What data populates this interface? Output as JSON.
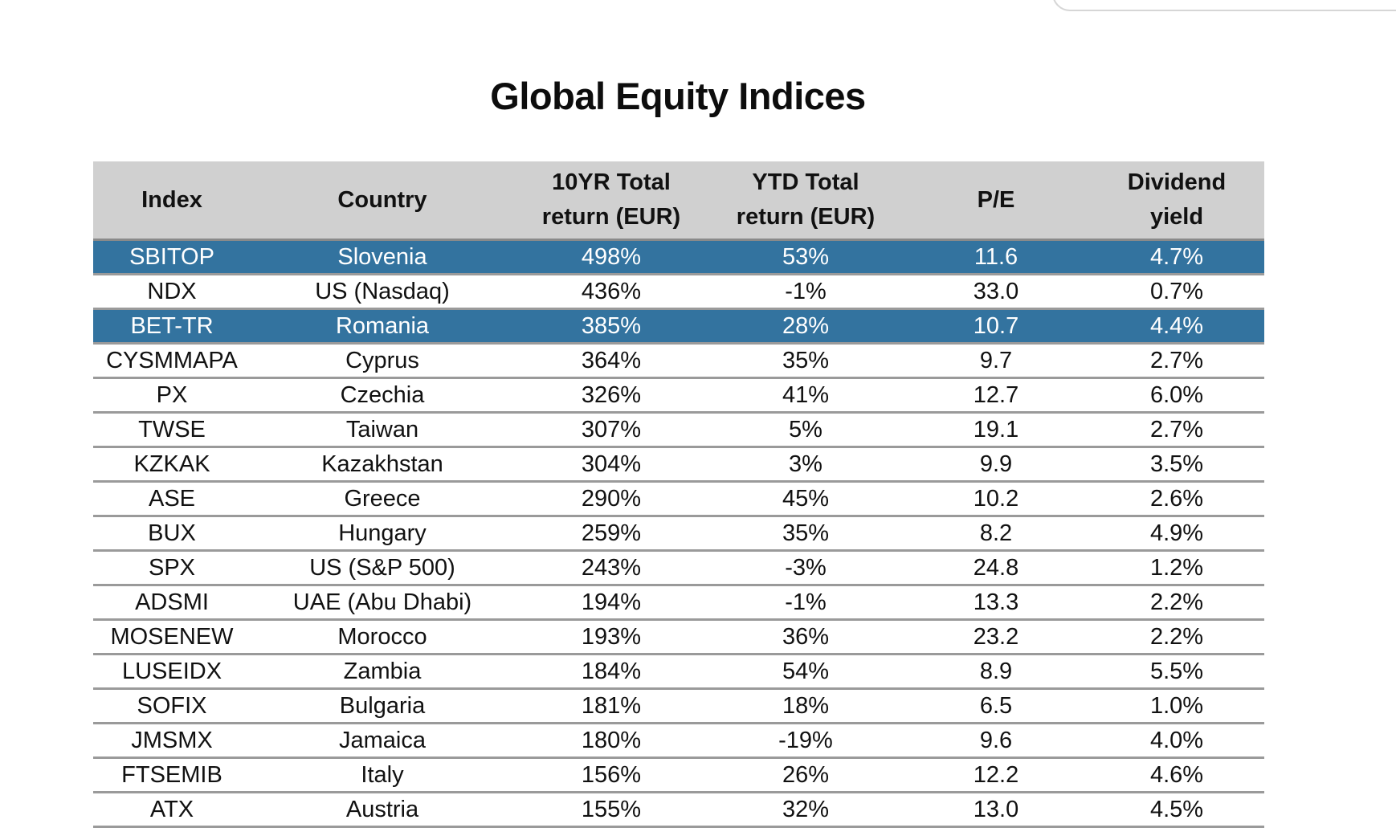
{
  "document": {
    "title": "Global Equity Indices"
  },
  "table": {
    "headers": {
      "index": "Index",
      "country": "Country",
      "ten_yr_line1": "10YR Total",
      "ten_yr_line2": "return (EUR)",
      "ytd_line1": "YTD Total",
      "ytd_line2": "return (EUR)",
      "pe": "P/E",
      "dividend_line1": "Dividend",
      "dividend_line2": "yield"
    },
    "highlight_color": "#33739f",
    "header_color": "#d0d0d0",
    "rows": [
      {
        "index": "SBITOP",
        "country": "Slovenia",
        "ten_yr": "498%",
        "ytd": "53%",
        "pe": "11.6",
        "dividend": "4.7%",
        "highlight": true
      },
      {
        "index": "NDX",
        "country": "US (Nasdaq)",
        "ten_yr": "436%",
        "ytd": "-1%",
        "pe": "33.0",
        "dividend": "0.7%",
        "highlight": false
      },
      {
        "index": "BET-TR",
        "country": "Romania",
        "ten_yr": "385%",
        "ytd": "28%",
        "pe": "10.7",
        "dividend": "4.4%",
        "highlight": true
      },
      {
        "index": "CYSMMAPA",
        "country": "Cyprus",
        "ten_yr": "364%",
        "ytd": "35%",
        "pe": "9.7",
        "dividend": "2.7%",
        "highlight": false
      },
      {
        "index": "PX",
        "country": "Czechia",
        "ten_yr": "326%",
        "ytd": "41%",
        "pe": "12.7",
        "dividend": "6.0%",
        "highlight": false
      },
      {
        "index": "TWSE",
        "country": "Taiwan",
        "ten_yr": "307%",
        "ytd": "5%",
        "pe": "19.1",
        "dividend": "2.7%",
        "highlight": false
      },
      {
        "index": "KZKAK",
        "country": "Kazakhstan",
        "ten_yr": "304%",
        "ytd": "3%",
        "pe": "9.9",
        "dividend": "3.5%",
        "highlight": false
      },
      {
        "index": "ASE",
        "country": "Greece",
        "ten_yr": "290%",
        "ytd": "45%",
        "pe": "10.2",
        "dividend": "2.6%",
        "highlight": false
      },
      {
        "index": "BUX",
        "country": "Hungary",
        "ten_yr": "259%",
        "ytd": "35%",
        "pe": "8.2",
        "dividend": "4.9%",
        "highlight": false
      },
      {
        "index": "SPX",
        "country": "US (S&P 500)",
        "ten_yr": "243%",
        "ytd": "-3%",
        "pe": "24.8",
        "dividend": "1.2%",
        "highlight": false
      },
      {
        "index": "ADSMI",
        "country": "UAE (Abu Dhabi)",
        "ten_yr": "194%",
        "ytd": "-1%",
        "pe": "13.3",
        "dividend": "2.2%",
        "highlight": false
      },
      {
        "index": "MOSENEW",
        "country": "Morocco",
        "ten_yr": "193%",
        "ytd": "36%",
        "pe": "23.2",
        "dividend": "2.2%",
        "highlight": false
      },
      {
        "index": "LUSEIDX",
        "country": "Zambia",
        "ten_yr": "184%",
        "ytd": "54%",
        "pe": "8.9",
        "dividend": "5.5%",
        "highlight": false
      },
      {
        "index": "SOFIX",
        "country": "Bulgaria",
        "ten_yr": "181%",
        "ytd": "18%",
        "pe": "6.5",
        "dividend": "1.0%",
        "highlight": false
      },
      {
        "index": "JMSMX",
        "country": "Jamaica",
        "ten_yr": "180%",
        "ytd": "-19%",
        "pe": "9.6",
        "dividend": "4.0%",
        "highlight": false
      },
      {
        "index": "FTSEMIB",
        "country": "Italy",
        "ten_yr": "156%",
        "ytd": "26%",
        "pe": "12.2",
        "dividend": "4.6%",
        "highlight": false
      },
      {
        "index": "ATX",
        "country": "Austria",
        "ten_yr": "155%",
        "ytd": "32%",
        "pe": "13.0",
        "dividend": "4.5%",
        "highlight": false
      }
    ]
  }
}
